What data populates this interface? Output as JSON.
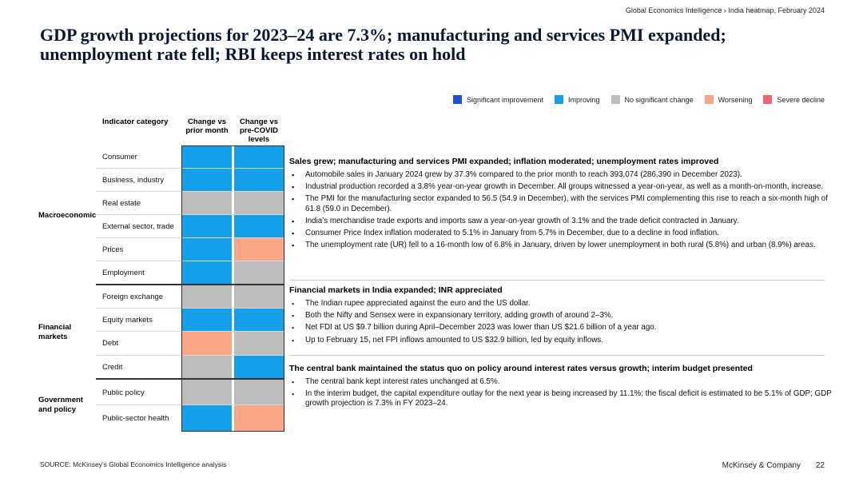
{
  "header": {
    "breadcrumb": "Global Economics Intelligence › India heatmap, February 2024"
  },
  "title": "GDP growth projections for 2023–24 are 7.3%; manufacturing and services PMI expanded; unemployment rate fell; RBI keeps interest rates on hold",
  "legend": [
    {
      "label": "Significant improvement",
      "color": "#1f4fe0"
    },
    {
      "label": "Improving",
      "color": "#139fea"
    },
    {
      "label": "No significant change",
      "color": "#bdbdbd"
    },
    {
      "label": "Worsening",
      "color": "#f9a686"
    },
    {
      "label": "Severe decline",
      "color": "#f1646b"
    }
  ],
  "table": {
    "headers": {
      "category": "Indicator category",
      "prior_month": "Change vs prior month",
      "pre_covid": "Change vs pre-COVID levels"
    },
    "groups": [
      {
        "label": "Macroeconomic"
      },
      {
        "label": "Financial markets"
      },
      {
        "label": "Government and policy"
      }
    ],
    "rows": [
      {
        "label": "Consumer",
        "prior": "#139fea",
        "covid": "#139fea"
      },
      {
        "label": "Business, industry",
        "prior": "#139fea",
        "covid": "#139fea"
      },
      {
        "label": "Real estate",
        "prior": "#bdbdbd",
        "covid": "#bdbdbd"
      },
      {
        "label": "External sector, trade",
        "prior": "#139fea",
        "covid": "#139fea"
      },
      {
        "label": "Prices",
        "prior": "#139fea",
        "covid": "#f9a686"
      },
      {
        "label": "Employment",
        "prior": "#139fea",
        "covid": "#bdbdbd"
      },
      {
        "label": "Foreign exchange",
        "prior": "#bdbdbd",
        "covid": "#bdbdbd"
      },
      {
        "label": "Equity markets",
        "prior": "#139fea",
        "covid": "#139fea"
      },
      {
        "label": "Debt",
        "prior": "#f9a686",
        "covid": "#bdbdbd"
      },
      {
        "label": "Credit",
        "prior": "#bdbdbd",
        "covid": "#139fea"
      },
      {
        "label": "Public policy",
        "prior": "#bdbdbd",
        "covid": "#bdbdbd"
      },
      {
        "label": "Public-sector health",
        "prior": "#139fea",
        "covid": "#f9a686"
      }
    ]
  },
  "sections": [
    {
      "title": "Sales grew; manufacturing and services PMI expanded; inflation moderated; unemployment rates improved",
      "bullets": [
        "Automobile sales in January 2024 grew by 37.3% compared to the prior month to reach 393,074 (286,390 in December 2023).",
        "Industrial production recorded a 3.8% year-on-year growth in December. All groups witnessed a year-on-year, as well as a month-on-month, increase.",
        "The PMI for the manufacturing sector expanded to 56.5 (54.9 in December), with the services PMI complementing this rise to reach a six-month high of 61.8 (59.0 in December).",
        "India’s merchandise trade exports and imports saw a year-on-year growth of 3.1% and the trade deficit contracted in January.",
        "Consumer Price Index inflation moderated to 5.1% in January from 5.7% in December, due to a decline in food inflation.",
        "The unemployment rate (UR) fell to a 16-month low of 6.8% in January, driven by lower unemployment in both rural (5.8%) and urban (8.9%) areas."
      ]
    },
    {
      "title": "Financial markets in India expanded; INR appreciated",
      "bullets": [
        "The Indian rupee appreciated against the euro and the US dollar.",
        "Both the Nifty and Sensex were in expansionary territory, adding growth of around 2–3%.",
        "Net FDI at US $9.7 billion during April–December 2023 was lower than US $21.6 billion of a year ago.",
        "Up to February 15, net FPI inflows amounted to US $32.9 billion, led by equity inflows."
      ]
    },
    {
      "title": "The central bank maintained the status quo on policy around interest rates versus growth; interim budget presented",
      "bullets": [
        "The central bank kept interest rates unchanged at 6.5%.",
        "In the interim budget, the capital expenditure outlay for the next year is being increased by 11.1%; the fiscal deficit is estimated to be 5.1% of GDP; GDP growth projection is 7.3% in FY 2023–24."
      ]
    }
  ],
  "footer": {
    "source": "SOURCE: McKinsey’s Global Economics Intelligence analysis",
    "brand": "McKinsey & Company",
    "page": "22"
  }
}
